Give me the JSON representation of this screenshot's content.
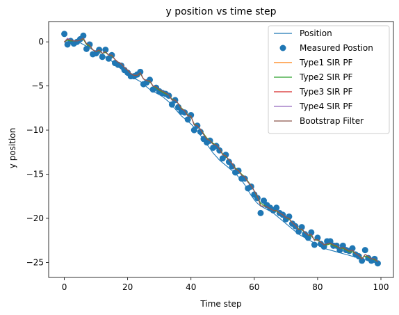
{
  "chart_data": {
    "type": "line",
    "title": "y position vs time step",
    "xlabel": "Time step",
    "ylabel": "y position",
    "xlim": [
      -4.95,
      103.95
    ],
    "ylim": [
      -26.7,
      2.3
    ],
    "xticks": [
      0,
      20,
      40,
      60,
      80,
      100
    ],
    "yticks": [
      0,
      -5,
      -10,
      -15,
      -20,
      -25
    ],
    "grid": false,
    "legend_position": "top-right",
    "x": [
      0,
      1,
      2,
      3,
      4,
      5,
      6,
      7,
      8,
      9,
      10,
      11,
      12,
      13,
      14,
      15,
      16,
      17,
      18,
      19,
      20,
      21,
      22,
      23,
      24,
      25,
      26,
      27,
      28,
      29,
      30,
      31,
      32,
      33,
      34,
      35,
      36,
      37,
      38,
      39,
      40,
      41,
      42,
      43,
      44,
      45,
      46,
      47,
      48,
      49,
      50,
      51,
      52,
      53,
      54,
      55,
      56,
      57,
      58,
      59,
      60,
      61,
      62,
      63,
      64,
      65,
      66,
      67,
      68,
      69,
      70,
      71,
      72,
      73,
      74,
      75,
      76,
      77,
      78,
      79,
      80,
      81,
      82,
      83,
      84,
      85,
      86,
      87,
      88,
      89,
      90,
      91,
      92,
      93,
      94,
      95,
      96,
      97,
      98,
      99
    ],
    "series": [
      {
        "name": "Position",
        "kind": "line",
        "color": "#1f77b4",
        "values": [
          0,
          0,
          0,
          0,
          0,
          -0.1,
          -0.3,
          -0.5,
          -0.7,
          -0.9,
          -1.1,
          -1.3,
          -1.5,
          -1.7,
          -1.9,
          -2.2,
          -2.5,
          -2.8,
          -3.1,
          -3.4,
          -3.7,
          -3.9,
          -4.1,
          -4.3,
          -4.5,
          -4.8,
          -5.1,
          -5.4,
          -5.6,
          -5.8,
          -6,
          -6.2,
          -6.5,
          -6.8,
          -7.2,
          -7.6,
          -8,
          -8.4,
          -8.7,
          -9,
          -9.3,
          -9.7,
          -10.1,
          -10.6,
          -11.1,
          -11.6,
          -12.1,
          -12.6,
          -13,
          -13.4,
          -13.7,
          -14,
          -14.3,
          -14.6,
          -14.9,
          -15.3,
          -15.7,
          -16.2,
          -16.8,
          -17.4,
          -17.9,
          -18.3,
          -18.6,
          -18.8,
          -19,
          -19.2,
          -19.4,
          -19.7,
          -20,
          -20.3,
          -20.6,
          -20.9,
          -21.2,
          -21.5,
          -21.8,
          -22,
          -22.2,
          -22.4,
          -22.6,
          -22.8,
          -23,
          -23.2,
          -23.4,
          -23.5,
          -23.6,
          -23.7,
          -23.8,
          -23.9,
          -24,
          -24.1,
          -24.2,
          -24.3,
          -24.4,
          -24.5,
          -24.6,
          -24.7,
          -24.8,
          -24.9,
          -25,
          -25.1
        ]
      },
      {
        "name": "Measured Postion",
        "kind": "scatter",
        "color": "#1f77b4",
        "values": [
          0.9,
          -0.3,
          0.1,
          -0.2,
          0,
          0.3,
          0.7,
          -0.8,
          -0.3,
          -1.4,
          -1.3,
          -0.9,
          -1.7,
          -0.9,
          -1.9,
          -1.5,
          -2.4,
          -2.6,
          -2.7,
          -3.2,
          -3.5,
          -3.9,
          -3.9,
          -3.7,
          -3.4,
          -4.8,
          -4.6,
          -4.3,
          -5.4,
          -5.2,
          -5.6,
          -5.8,
          -5.9,
          -6.1,
          -7.1,
          -6.6,
          -7.4,
          -7.9,
          -8,
          -8.8,
          -8.3,
          -10,
          -9.5,
          -10.2,
          -11,
          -11.4,
          -11.2,
          -12,
          -11.8,
          -12.3,
          -13.2,
          -12.8,
          -13.6,
          -14.1,
          -14.8,
          -14.6,
          -15.5,
          -15.5,
          -16.6,
          -16.4,
          -17.3,
          -17.7,
          -19.4,
          -18,
          -18.5,
          -18.8,
          -19.1,
          -18.8,
          -19.4,
          -19.6,
          -20.1,
          -19.8,
          -20.6,
          -20.9,
          -21.5,
          -21,
          -21.8,
          -22.2,
          -21.6,
          -23,
          -22.2,
          -22.9,
          -23.2,
          -22.6,
          -22.6,
          -23.1,
          -23.1,
          -23.6,
          -23.1,
          -23.6,
          -23.7,
          -23.4,
          -24.1,
          -24.3,
          -24.8,
          -23.6,
          -24.5,
          -24.8,
          -24.6,
          -25.1
        ]
      },
      {
        "name": "Type1 SIR PF",
        "kind": "line",
        "color": "#ff7f0e",
        "values": [
          0,
          0.2,
          0.1,
          0.1,
          0.1,
          0.2,
          0.3,
          -0.3,
          -0.5,
          -0.9,
          -1.1,
          -1,
          -1.3,
          -1.2,
          -1.5,
          -1.6,
          -2,
          -2.3,
          -2.5,
          -2.9,
          -3.2,
          -3.6,
          -3.8,
          -3.8,
          -3.6,
          -4.2,
          -4.4,
          -4.5,
          -5,
          -5.2,
          -5.5,
          -5.7,
          -5.9,
          -6,
          -6.5,
          -6.6,
          -7,
          -7.5,
          -7.8,
          -8.3,
          -8.5,
          -9.3,
          -9.5,
          -9.9,
          -10.4,
          -10.9,
          -11.2,
          -11.5,
          -11.7,
          -12.1,
          -12.7,
          -13,
          -13.4,
          -13.8,
          -14.3,
          -14.6,
          -15,
          -15.3,
          -15.8,
          -16.3,
          -16.9,
          -17.6,
          -18.3,
          -18.5,
          -18.7,
          -18.9,
          -19.1,
          -19.2,
          -19.4,
          -19.6,
          -19.9,
          -20.1,
          -20.5,
          -20.8,
          -21.2,
          -21.3,
          -21.6,
          -21.9,
          -22,
          -22.4,
          -22.5,
          -22.7,
          -23,
          -23,
          -22.9,
          -23.1,
          -23.2,
          -23.4,
          -23.4,
          -23.6,
          -23.8,
          -23.8,
          -24,
          -24.2,
          -24.5,
          -24.3,
          -24.4,
          -24.6,
          -24.7,
          -24.9
        ]
      },
      {
        "name": "Type2 SIR PF",
        "kind": "line",
        "color": "#2ca02c",
        "values": [
          0,
          0.2,
          0.1,
          0.1,
          0.1,
          0.2,
          0.3,
          -0.3,
          -0.5,
          -0.9,
          -1.1,
          -1,
          -1.3,
          -1.2,
          -1.5,
          -1.6,
          -2,
          -2.3,
          -2.5,
          -2.9,
          -3.2,
          -3.6,
          -3.8,
          -3.8,
          -3.6,
          -4.2,
          -4.4,
          -4.5,
          -5,
          -5.2,
          -5.5,
          -5.7,
          -5.9,
          -6,
          -6.5,
          -6.6,
          -7,
          -7.5,
          -7.8,
          -8.3,
          -8.5,
          -9.3,
          -9.5,
          -9.9,
          -10.4,
          -10.9,
          -11.2,
          -11.5,
          -11.7,
          -12.1,
          -12.7,
          -13,
          -13.4,
          -13.8,
          -14.3,
          -14.6,
          -15,
          -15.3,
          -15.8,
          -16.3,
          -16.9,
          -17.6,
          -18.3,
          -18.5,
          -18.7,
          -18.9,
          -19.1,
          -19.2,
          -19.4,
          -19.6,
          -19.9,
          -20.1,
          -20.5,
          -20.8,
          -21.2,
          -21.3,
          -21.6,
          -21.9,
          -22,
          -22.4,
          -22.5,
          -22.7,
          -23,
          -23,
          -22.9,
          -23.1,
          -23.2,
          -23.4,
          -23.4,
          -23.6,
          -23.8,
          -23.8,
          -24,
          -24.2,
          -24.5,
          -24.3,
          -24.4,
          -24.6,
          -24.7,
          -24.9
        ]
      },
      {
        "name": "Type3 SIR PF",
        "kind": "line",
        "color": "#d62728",
        "values": [
          0,
          0.4,
          0.2,
          0.1,
          0.1,
          0.2,
          0.4,
          -0.2,
          -0.4,
          -0.9,
          -1.1,
          -0.9,
          -1.3,
          -1.1,
          -1.5,
          -1.5,
          -2,
          -2.3,
          -2.5,
          -2.9,
          -3.2,
          -3.6,
          -3.8,
          -3.8,
          -3.5,
          -4.2,
          -4.4,
          -4.4,
          -5,
          -5.1,
          -5.4,
          -5.6,
          -5.8,
          -6,
          -6.6,
          -6.6,
          -7,
          -7.6,
          -7.8,
          -8.4,
          -8.4,
          -9.4,
          -9.5,
          -9.9,
          -10.5,
          -11,
          -11.2,
          -11.6,
          -11.7,
          -12.1,
          -12.8,
          -12.9,
          -13.4,
          -13.8,
          -14.4,
          -14.6,
          -15.1,
          -15.3,
          -15.9,
          -16.3,
          -16.9,
          -17.5,
          -18.6,
          -18.6,
          -18.7,
          -18.9,
          -19.1,
          -19.1,
          -19.4,
          -19.6,
          -19.9,
          -20,
          -20.5,
          -20.8,
          -21.3,
          -21.2,
          -21.6,
          -21.9,
          -21.8,
          -22.5,
          -22.4,
          -22.7,
          -23,
          -22.9,
          -22.8,
          -23,
          -23.1,
          -23.4,
          -23.3,
          -23.5,
          -23.7,
          -23.6,
          -24,
          -24.2,
          -24.6,
          -24.1,
          -24.3,
          -24.6,
          -24.6,
          -24.9
        ]
      },
      {
        "name": "Type4 SIR PF",
        "kind": "line",
        "color": "#9467bd",
        "values": [
          0,
          0.4,
          0.2,
          0.1,
          0.1,
          0.2,
          0.4,
          -0.2,
          -0.4,
          -0.9,
          -1.1,
          -0.9,
          -1.3,
          -1.1,
          -1.5,
          -1.5,
          -2,
          -2.3,
          -2.5,
          -2.9,
          -3.2,
          -3.6,
          -3.8,
          -3.8,
          -3.5,
          -4.2,
          -4.4,
          -4.4,
          -5,
          -5.1,
          -5.4,
          -5.6,
          -5.8,
          -6,
          -6.6,
          -6.6,
          -7,
          -7.6,
          -7.8,
          -8.4,
          -8.4,
          -9.4,
          -9.5,
          -9.9,
          -10.5,
          -11,
          -11.2,
          -11.6,
          -11.7,
          -12.1,
          -12.8,
          -12.9,
          -13.4,
          -13.8,
          -14.4,
          -14.6,
          -15.1,
          -15.3,
          -15.9,
          -16.3,
          -16.9,
          -17.5,
          -18.6,
          -18.6,
          -18.7,
          -18.9,
          -19.1,
          -19.1,
          -19.4,
          -19.6,
          -19.9,
          -20,
          -20.5,
          -20.8,
          -21.3,
          -21.2,
          -21.6,
          -21.9,
          -21.8,
          -22.5,
          -22.4,
          -22.7,
          -23,
          -22.9,
          -22.8,
          -23,
          -23.1,
          -23.4,
          -23.3,
          -23.5,
          -23.7,
          -23.6,
          -24,
          -24.2,
          -24.6,
          -24.1,
          -24.3,
          -24.6,
          -24.6,
          -24.9
        ]
      },
      {
        "name": "Bootstrap Filter",
        "kind": "line",
        "color": "#8c564b",
        "values": [
          0,
          0.3,
          0.2,
          0.1,
          0.1,
          0.2,
          0.4,
          -0.2,
          -0.4,
          -0.9,
          -1.1,
          -0.9,
          -1.3,
          -1.1,
          -1.5,
          -1.5,
          -2,
          -2.3,
          -2.5,
          -2.9,
          -3.2,
          -3.6,
          -3.8,
          -3.8,
          -3.5,
          -4.2,
          -4.4,
          -4.4,
          -5,
          -5.1,
          -5.4,
          -5.6,
          -5.8,
          -6,
          -6.6,
          -6.6,
          -7,
          -7.6,
          -7.8,
          -8.4,
          -8.4,
          -9.4,
          -9.5,
          -9.9,
          -10.5,
          -11,
          -11.2,
          -11.6,
          -11.7,
          -12.1,
          -12.8,
          -12.9,
          -13.4,
          -13.8,
          -14.4,
          -14.6,
          -15.1,
          -15.3,
          -15.9,
          -16.3,
          -16.9,
          -17.5,
          -18.6,
          -18.6,
          -18.7,
          -18.9,
          -19.1,
          -19.1,
          -19.4,
          -19.6,
          -19.9,
          -20,
          -20.5,
          -20.8,
          -21.3,
          -21.2,
          -21.6,
          -21.9,
          -21.8,
          -22.5,
          -22.4,
          -22.7,
          -23,
          -22.9,
          -22.8,
          -23,
          -23.1,
          -23.4,
          -23.3,
          -23.5,
          -23.7,
          -23.6,
          -24,
          -24.2,
          -24.6,
          -24.1,
          -24.3,
          -24.6,
          -24.6,
          -24.9
        ]
      }
    ]
  }
}
